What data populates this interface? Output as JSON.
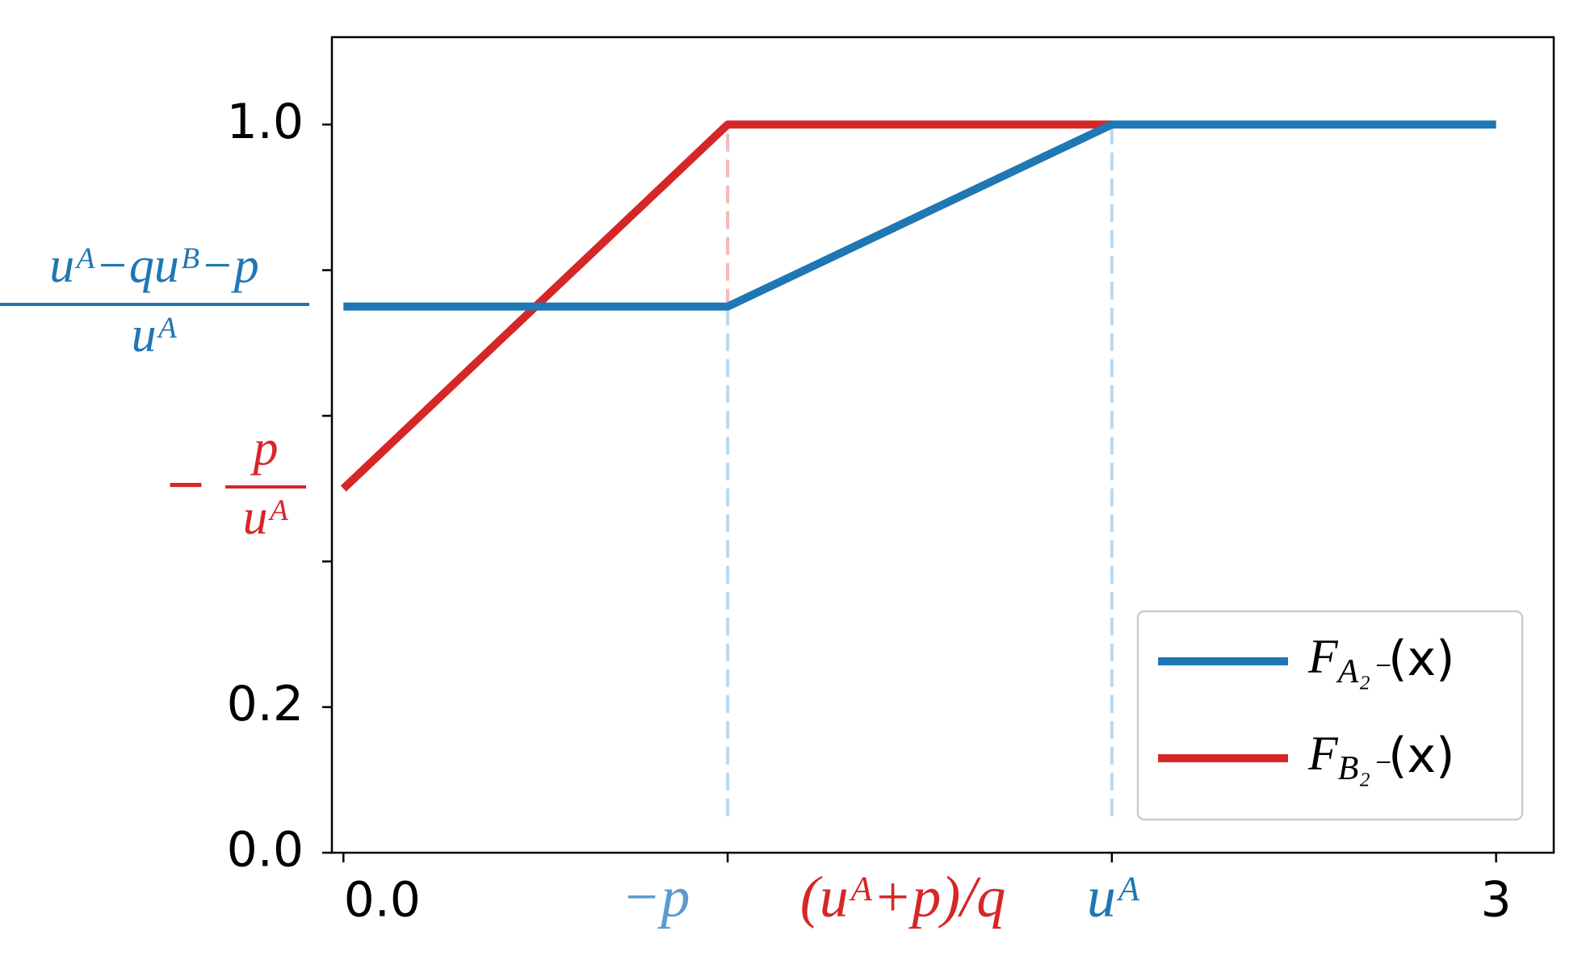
{
  "chart_data": {
    "type": "line",
    "xlim": [
      -0.03,
      3.15
    ],
    "ylim": [
      0,
      1.12
    ],
    "xticks": [
      {
        "value": 0,
        "label": "0.0",
        "color": "#000000"
      },
      {
        "value": 1,
        "label": "−p",
        "color": "#5a9bd0"
      },
      {
        "value": 2,
        "label": "uᴬ",
        "color": "#1f77b4"
      },
      {
        "value": 3,
        "label": "3",
        "color": "#000000"
      }
    ],
    "yticks": [
      {
        "value": 0,
        "label": "0.0"
      },
      {
        "value": 0.2,
        "label": "0.2"
      },
      {
        "value": 1,
        "label": "1.0"
      }
    ],
    "yticks_unlabeled": [
      0.4,
      0.6,
      0.8
    ],
    "annotations": [
      {
        "text": "(uᴬ+p)/q",
        "color": "#d62728"
      },
      {
        "numerator": "uᴬ−quᴮ−p",
        "denominator": "uᴬ",
        "color": "#1f77b4"
      },
      {
        "prefix": "−",
        "numerator": "p",
        "denominator": "uᴬ",
        "color": "#d62728"
      }
    ],
    "vlines": [
      {
        "x": 1,
        "ymin": 0.75,
        "ymax": 1,
        "color": "#f4b9b9"
      },
      {
        "x": 1,
        "ymin": 0.05,
        "ymax": 0.75,
        "color": "#bcd8ee"
      },
      {
        "x": 2,
        "ymin": 0.05,
        "ymax": 1,
        "color": "#bcd8ee"
      }
    ],
    "series": [
      {
        "name": "F_{A₂⁻}(x)",
        "color": "#1f77b4",
        "x": [
          0,
          1,
          2,
          3
        ],
        "values": [
          0.75,
          0.75,
          1,
          1
        ]
      },
      {
        "name": "F_{B₂⁻}(x)",
        "color": "#d62728",
        "x": [
          0,
          1,
          2
        ],
        "values": [
          0.5,
          1,
          1
        ]
      }
    ],
    "legend": "lower right"
  }
}
